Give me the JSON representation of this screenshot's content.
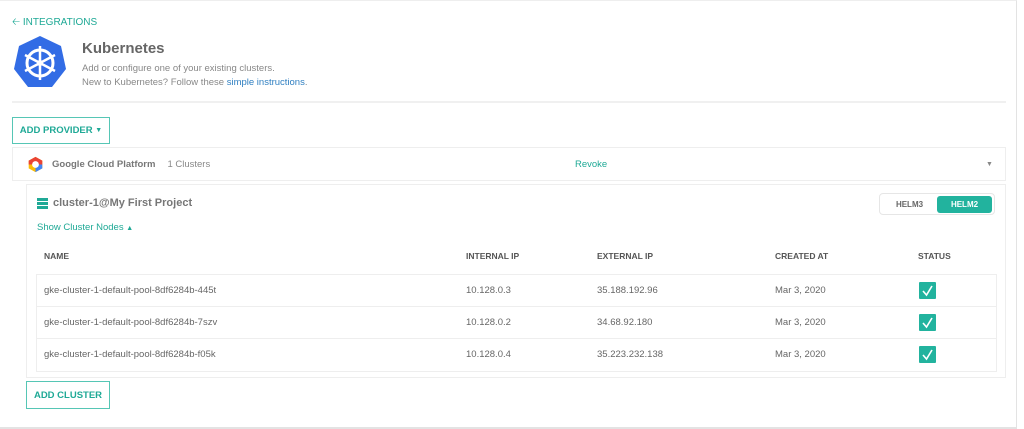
{
  "back_link": "INTEGRATIONS",
  "header": {
    "title": "Kubernetes",
    "line1": "Add or configure one of your existing clusters.",
    "line2_prefix": "New to Kubernetes? Follow these ",
    "line2_link": "simple instructions",
    "line2_suffix": "."
  },
  "add_provider": "ADD PROVIDER",
  "provider": {
    "name": "Google Cloud Platform",
    "count": "1 Clusters",
    "revoke": "Revoke"
  },
  "cluster": {
    "title": "cluster-1@My First Project",
    "helm_options": [
      "HELM3",
      "HELM2"
    ],
    "helm_selected": "HELM2",
    "show_nodes": "Show Cluster Nodes",
    "columns": [
      "NAME",
      "INTERNAL IP",
      "EXTERNAL IP",
      "CREATED AT",
      "STATUS"
    ],
    "rows": [
      {
        "name": "gke-cluster-1-default-pool-8df6284b-445t",
        "internal_ip": "10.128.0.3",
        "external_ip": "35.188.192.96",
        "created": "Mar 3, 2020",
        "status": "ok"
      },
      {
        "name": "gke-cluster-1-default-pool-8df6284b-7szv",
        "internal_ip": "10.128.0.2",
        "external_ip": "34.68.92.180",
        "created": "Mar 3, 2020",
        "status": "ok"
      },
      {
        "name": "gke-cluster-1-default-pool-8df6284b-f05k",
        "internal_ip": "10.128.0.4",
        "external_ip": "35.223.232.138",
        "created": "Mar 3, 2020",
        "status": "ok"
      }
    ]
  },
  "add_cluster": "ADD CLUSTER",
  "colors": {
    "accent": "#1fa996",
    "k8s_blue": "#326ce5",
    "link": "#2f7fc1"
  }
}
